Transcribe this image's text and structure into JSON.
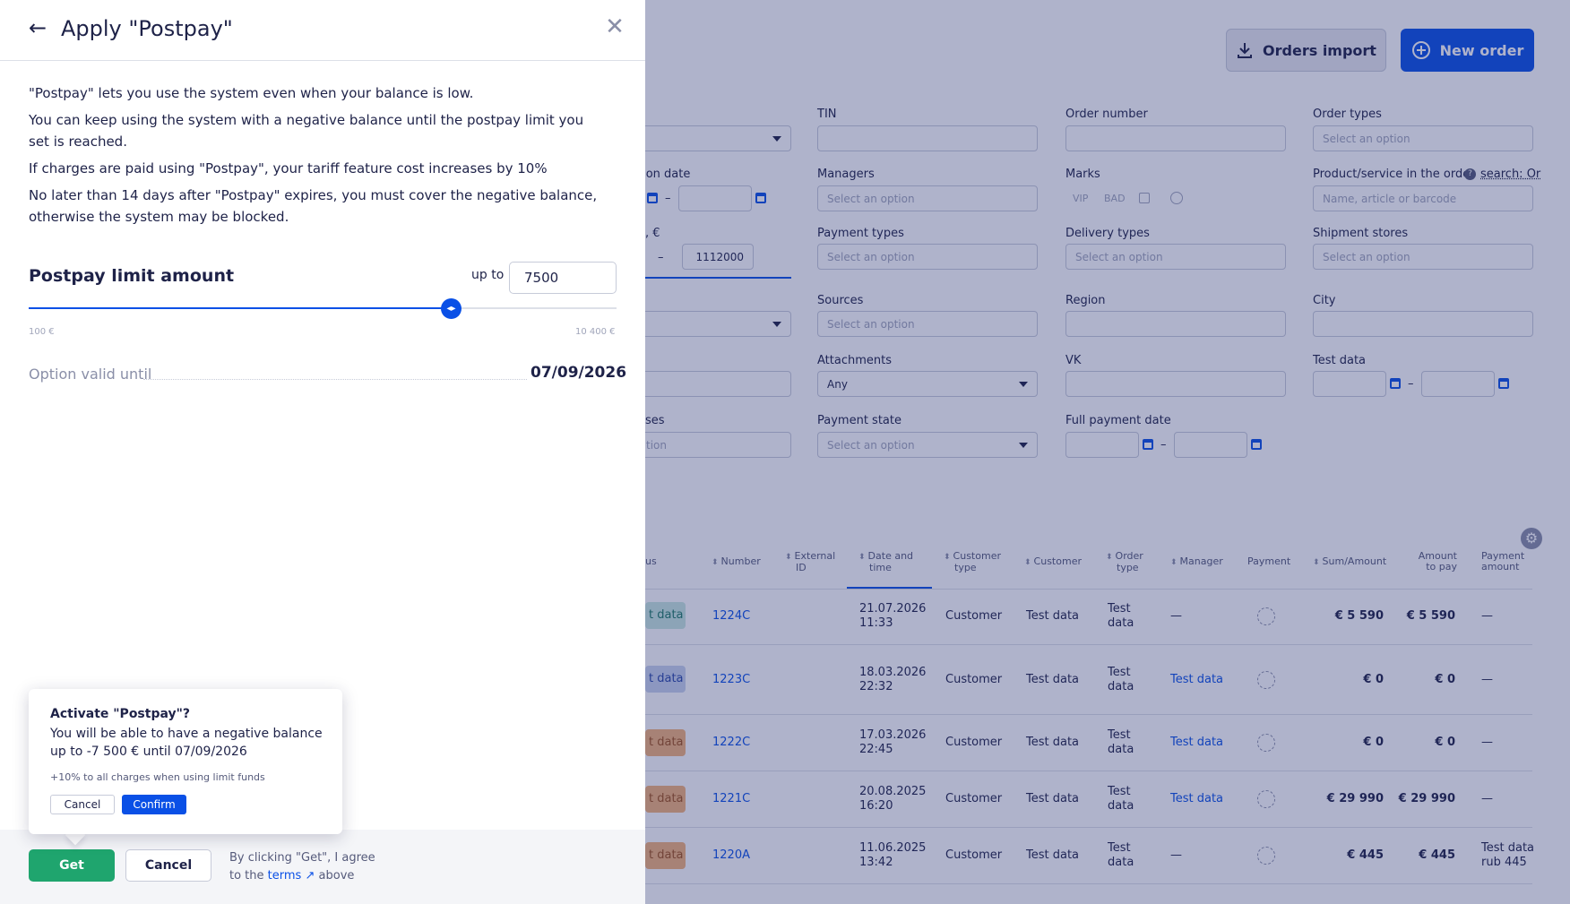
{
  "background": {
    "orders_import_label": "Orders import",
    "new_order_label": "New order",
    "filters": {
      "tin_label": "TIN",
      "order_number_label": "Order number",
      "order_types_label": "Order types",
      "order_types_placeholder": "Select an option",
      "partial_creation_date_label": "tion date",
      "managers_label": "Managers",
      "managers_placeholder": "Select an option",
      "marks_label": "Marks",
      "marks": [
        "VIP",
        "BAD"
      ],
      "product_label": "Product/service in the order",
      "product_search_hint": "search: Or",
      "product_placeholder": "Name, article or barcode",
      "partial_sum_label": ", €",
      "sum_to_value": "1112000",
      "payment_types_label": "Payment types",
      "payment_types_placeholder": "Select an option",
      "delivery_types_label": "Delivery types",
      "delivery_types_placeholder": "Select an option",
      "shipment_stores_label": "Shipment stores",
      "shipment_stores_placeholder": "Select an option",
      "sources_label": "Sources",
      "sources_placeholder": "Select an option",
      "region_label": "Region",
      "city_label": "City",
      "attachments_label": "Attachments",
      "attachments_value": "Any",
      "vk_label": "VK",
      "test_data_label": "Test data",
      "partial_statuses_label": "ses",
      "partial_statuses_placeholder": "tion",
      "payment_state_label": "Payment state",
      "payment_state_placeholder": "Select an option",
      "full_payment_date_label": "Full payment date",
      "range_dash": "–"
    },
    "table": {
      "headers": {
        "status": "us",
        "number": "Number",
        "external_id_1": "External",
        "external_id_2": "ID",
        "date_1": "Date and",
        "date_2": "time",
        "customer_type_1": "Customer",
        "customer_type_2": "type",
        "customer": "Customer",
        "order_type_1": "Order",
        "order_type_2": "type",
        "manager": "Manager",
        "payment": "Payment",
        "sum": "Sum/Amount",
        "amount_to_pay_1": "Amount",
        "amount_to_pay_2": "to pay",
        "payment_amount_1": "Payment",
        "payment_amount_2": "amount"
      },
      "rows": [
        {
          "status": "t data",
          "number": "1224C",
          "date": "21.07.2026",
          "time": "11:33",
          "customer_type": "Customer",
          "customer": "Test data",
          "order_type_1": "Test",
          "order_type_2": "data",
          "manager": "—",
          "sum": "€ 5 590",
          "to_pay": "€ 5 590",
          "pay_amount_1": "—",
          "pay_amount_2": ""
        },
        {
          "status": "t data",
          "number": "1223C",
          "date": "18.03.2026",
          "time": "22:32",
          "customer_type": "Customer",
          "customer": "Test data",
          "order_type_1": "Test",
          "order_type_2": "data",
          "manager": "Test data",
          "sum": "€ 0",
          "to_pay": "€ 0",
          "pay_amount_1": "—",
          "pay_amount_2": ""
        },
        {
          "status": "t data",
          "number": "1222C",
          "date": "17.03.2026",
          "time": "22:45",
          "customer_type": "Customer",
          "customer": "Test data",
          "order_type_1": "Test",
          "order_type_2": "data",
          "manager": "Test data",
          "sum": "€ 0",
          "to_pay": "€ 0",
          "pay_amount_1": "—",
          "pay_amount_2": ""
        },
        {
          "status": "t data",
          "number": "1221C",
          "date": "20.08.2025",
          "time": "16:20",
          "customer_type": "Customer",
          "customer": "Test data",
          "order_type_1": "Test",
          "order_type_2": "data",
          "manager": "Test data",
          "sum": "€ 29 990",
          "to_pay": "€ 29 990",
          "pay_amount_1": "—",
          "pay_amount_2": ""
        },
        {
          "status": "t data",
          "number": "1220A",
          "date": "11.06.2025",
          "time": "13:42",
          "customer_type": "Customer",
          "customer": "Test data",
          "order_type_1": "Test",
          "order_type_2": "data",
          "manager": "—",
          "sum": "€ 445",
          "to_pay": "€ 445",
          "pay_amount_1": "Test data",
          "pay_amount_2": "rub 445"
        }
      ]
    }
  },
  "drawer": {
    "title": "Apply \"Postpay\"",
    "paragraphs": [
      "\"Postpay\" lets you use the system even when your balance is low.",
      "You can keep using the system with a negative balance until the postpay limit you set is reached.",
      "If charges are paid using \"Postpay\", your tariff feature cost increases by 10%",
      "No later than 14 days after \"Postpay\" expires, you must cover the negative balance, otherwise the system may be blocked."
    ],
    "limit_title": "Postpay limit amount",
    "up_to_label": "up to",
    "limit_value": "7500",
    "slider": {
      "min_label": "100 €",
      "max_label": "10 400 €",
      "min": 100,
      "max": 10400,
      "value": 7500
    },
    "valid_label": "Option valid until",
    "valid_date": "07/09/2026",
    "get_label": "Get",
    "cancel_label": "Cancel",
    "agree_text_1": "By clicking \"Get\", I agree",
    "agree_text_2": "to the",
    "agree_terms": "terms",
    "agree_text_3": "above"
  },
  "popover": {
    "title": "Activate \"Postpay\"?",
    "text": "You will be able to have a negative balance up to -7 500 € until 07/09/2026",
    "note": "+10% to all charges when using limit funds",
    "cancel_label": "Cancel",
    "confirm_label": "Confirm"
  },
  "colors": {
    "accent": "#0a50e6",
    "get_green": "#1fa56e",
    "overlay": "#222c6e"
  }
}
